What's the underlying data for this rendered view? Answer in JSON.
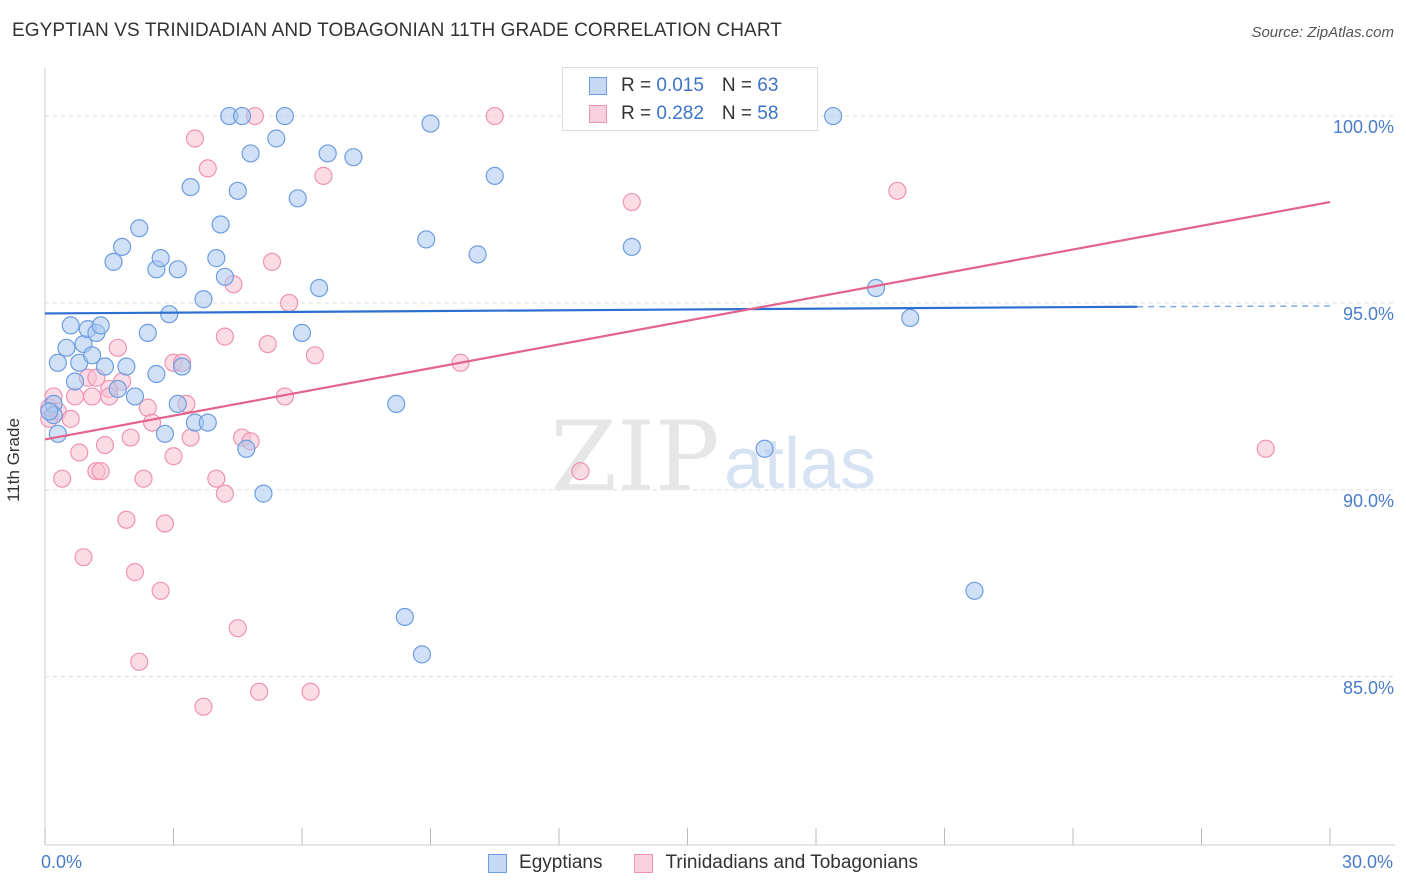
{
  "header": {
    "title": "EGYPTIAN VS TRINIDADIAN AND TOBAGONIAN 11TH GRADE CORRELATION CHART",
    "source": "Source: ZipAtlas.com"
  },
  "watermark": {
    "zip": "ZIP",
    "atlas": "atlas"
  },
  "colors": {
    "blue_fill": "#aac8f0",
    "blue_stroke": "#6d9de0",
    "blue_line": "#2c6fd1",
    "pink_fill": "#f7bfd0",
    "pink_stroke": "#ef93b1",
    "pink_line": "#e4628e",
    "tick_text": "#4a7cc9",
    "grid": "#dddddd"
  },
  "legend": {
    "rows": [
      {
        "r_label": "R = ",
        "r_value": "0.015",
        "n_label": "N = ",
        "n_value": "63"
      },
      {
        "r_label": "R = ",
        "r_value": "0.282",
        "n_label": "N = ",
        "n_value": "58"
      }
    ]
  },
  "chart_data": {
    "type": "scatter",
    "title": "EGYPTIAN VS TRINIDADIAN AND TOBAGONIAN 11TH GRADE CORRELATION CHART",
    "xlabel": "",
    "ylabel": "11th Grade",
    "xlim": [
      0,
      30
    ],
    "ylim": [
      80.5,
      101.5
    ],
    "x_tick_labels": [
      {
        "x": 0,
        "label": "0.0%"
      },
      {
        "x": 30,
        "label": "30.0%"
      }
    ],
    "y_ticks": [
      {
        "y": 100,
        "label": "100.0%"
      },
      {
        "y": 95,
        "label": "95.0%"
      },
      {
        "y": 90,
        "label": "90.0%"
      },
      {
        "y": 85,
        "label": "85.0%"
      }
    ],
    "x_minor_ticks": [
      0,
      3,
      6,
      9,
      12,
      15,
      18,
      21,
      24,
      27,
      30
    ],
    "series": [
      {
        "name": "Egyptians",
        "color": "blue",
        "r": 0.015,
        "n": 63,
        "trend": {
          "x0": 0,
          "y0": 94.72,
          "x1": 25.5,
          "y1": 94.9,
          "dash_to_x": 30,
          "dash_to_y": 94.92
        },
        "points": [
          [
            0.2,
            92.3
          ],
          [
            0.2,
            92.0
          ],
          [
            0.3,
            91.5
          ],
          [
            0.3,
            93.4
          ],
          [
            0.5,
            93.8
          ],
          [
            0.6,
            94.4
          ],
          [
            0.7,
            92.9
          ],
          [
            0.8,
            93.4
          ],
          [
            0.9,
            93.9
          ],
          [
            1.0,
            94.3
          ],
          [
            1.1,
            93.6
          ],
          [
            1.2,
            94.2
          ],
          [
            1.3,
            94.4
          ],
          [
            1.4,
            93.3
          ],
          [
            1.6,
            96.1
          ],
          [
            1.7,
            92.7
          ],
          [
            1.8,
            96.5
          ],
          [
            1.9,
            93.3
          ],
          [
            2.1,
            92.5
          ],
          [
            2.2,
            97.0
          ],
          [
            2.4,
            94.2
          ],
          [
            2.6,
            93.1
          ],
          [
            2.6,
            95.9
          ],
          [
            2.7,
            96.2
          ],
          [
            2.8,
            91.5
          ],
          [
            2.9,
            94.7
          ],
          [
            3.1,
            92.3
          ],
          [
            3.1,
            95.9
          ],
          [
            3.2,
            93.3
          ],
          [
            3.4,
            98.1
          ],
          [
            3.5,
            91.8
          ],
          [
            3.7,
            95.1
          ],
          [
            3.8,
            91.8
          ],
          [
            4.0,
            96.2
          ],
          [
            4.1,
            97.1
          ],
          [
            4.2,
            95.7
          ],
          [
            4.3,
            100.0
          ],
          [
            4.5,
            98.0
          ],
          [
            4.6,
            100.0
          ],
          [
            4.7,
            91.1
          ],
          [
            4.8,
            99.0
          ],
          [
            5.1,
            89.9
          ],
          [
            5.4,
            99.4
          ],
          [
            5.6,
            100.0
          ],
          [
            5.9,
            97.8
          ],
          [
            6.0,
            94.2
          ],
          [
            6.4,
            95.4
          ],
          [
            6.6,
            99.0
          ],
          [
            7.2,
            98.9
          ],
          [
            8.2,
            92.3
          ],
          [
            8.4,
            86.6
          ],
          [
            8.8,
            85.6
          ],
          [
            8.9,
            96.7
          ],
          [
            9.0,
            99.8
          ],
          [
            10.1,
            96.3
          ],
          [
            10.5,
            98.4
          ],
          [
            13.7,
            96.5
          ],
          [
            16.8,
            91.1
          ],
          [
            18.4,
            100.0
          ],
          [
            19.4,
            95.4
          ],
          [
            20.2,
            94.6
          ],
          [
            21.7,
            87.3
          ],
          [
            0.1,
            92.1
          ]
        ]
      },
      {
        "name": "Trinidadians and Tobagonians",
        "color": "pink",
        "r": 0.282,
        "n": 58,
        "trend": {
          "x0": 0,
          "y0": 91.35,
          "x1": 30,
          "y1": 97.7
        },
        "points": [
          [
            0.1,
            91.9
          ],
          [
            0.1,
            92.2
          ],
          [
            0.2,
            92.5
          ],
          [
            0.3,
            92.1
          ],
          [
            0.4,
            90.3
          ],
          [
            0.6,
            91.9
          ],
          [
            0.7,
            92.5
          ],
          [
            0.8,
            91.0
          ],
          [
            0.9,
            88.2
          ],
          [
            1.0,
            93.0
          ],
          [
            1.1,
            92.5
          ],
          [
            1.2,
            90.5
          ],
          [
            1.2,
            93.0
          ],
          [
            1.3,
            90.5
          ],
          [
            1.4,
            91.2
          ],
          [
            1.5,
            92.7
          ],
          [
            1.5,
            92.5
          ],
          [
            1.7,
            93.8
          ],
          [
            1.8,
            92.9
          ],
          [
            1.9,
            89.2
          ],
          [
            2.0,
            91.4
          ],
          [
            2.1,
            87.8
          ],
          [
            2.2,
            85.4
          ],
          [
            2.3,
            90.3
          ],
          [
            2.4,
            92.2
          ],
          [
            2.5,
            91.8
          ],
          [
            2.7,
            87.3
          ],
          [
            2.8,
            89.1
          ],
          [
            3.0,
            93.4
          ],
          [
            3.0,
            90.9
          ],
          [
            3.2,
            93.4
          ],
          [
            3.3,
            92.3
          ],
          [
            3.4,
            91.4
          ],
          [
            3.5,
            99.4
          ],
          [
            3.7,
            84.2
          ],
          [
            3.8,
            98.6
          ],
          [
            4.0,
            90.3
          ],
          [
            4.2,
            89.9
          ],
          [
            4.2,
            94.1
          ],
          [
            4.4,
            95.5
          ],
          [
            4.5,
            86.3
          ],
          [
            4.6,
            91.4
          ],
          [
            4.8,
            91.3
          ],
          [
            4.9,
            100.0
          ],
          [
            5.0,
            84.6
          ],
          [
            5.2,
            93.9
          ],
          [
            5.3,
            96.1
          ],
          [
            5.6,
            92.5
          ],
          [
            5.7,
            95.0
          ],
          [
            6.2,
            84.6
          ],
          [
            6.3,
            93.6
          ],
          [
            6.5,
            98.4
          ],
          [
            9.7,
            93.4
          ],
          [
            10.5,
            100.0
          ],
          [
            12.5,
            90.5
          ],
          [
            13.7,
            97.7
          ],
          [
            19.9,
            98.0
          ],
          [
            28.5,
            91.1
          ]
        ]
      }
    ]
  }
}
